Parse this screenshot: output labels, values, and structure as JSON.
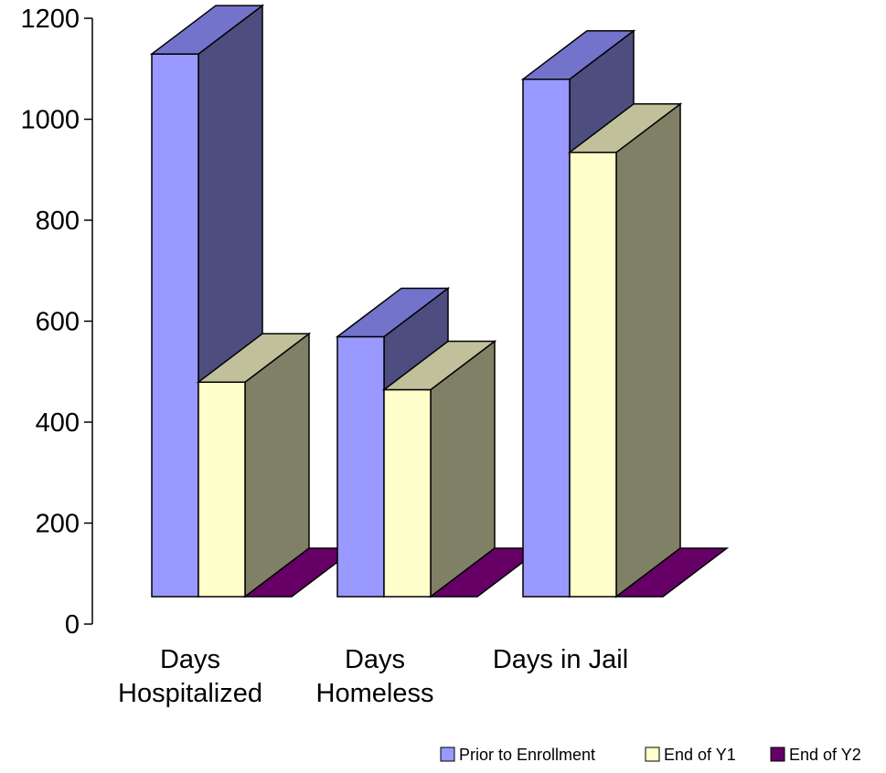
{
  "chart_data": {
    "type": "bar",
    "style": "3d-clustered-column",
    "categories": [
      [
        "Days",
        "Hospitalized"
      ],
      [
        "Days",
        "Homeless"
      ],
      [
        "Days in Jail"
      ]
    ],
    "series": [
      {
        "name": "Prior to Enrollment",
        "values": [
          1075,
          515,
          1025
        ],
        "color": "#9999ff"
      },
      {
        "name": "End of Y1",
        "values": [
          425,
          410,
          880
        ],
        "color": "#ffffcc"
      },
      {
        "name": "End of Y2",
        "values": [
          0,
          0,
          0
        ],
        "color": "#660066"
      }
    ],
    "y_ticks": [
      "0",
      "200",
      "400",
      "600",
      "800",
      "1000",
      "1200"
    ],
    "ylim": [
      0,
      1200
    ],
    "grid": false,
    "legend_position": "bottom-right"
  }
}
